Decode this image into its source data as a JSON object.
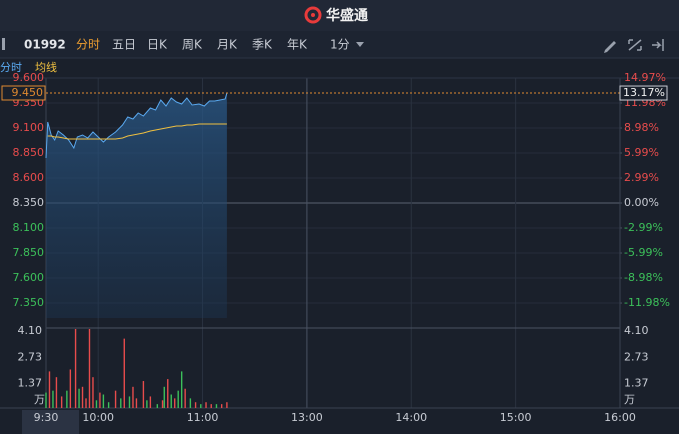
{
  "header": {
    "logo": "华盛通"
  },
  "toolbar": {
    "code": "01992",
    "tabs": [
      "分时",
      "五日",
      "日K",
      "周K",
      "月K",
      "季K",
      "年K"
    ],
    "active_tab": 0,
    "interval": "1分"
  },
  "chart_data": {
    "type": "line",
    "x": [
      0,
      1,
      3,
      5,
      7,
      10,
      13,
      16,
      18,
      21,
      24,
      27,
      30,
      33,
      36,
      40,
      44,
      47,
      50,
      53,
      56,
      60,
      63,
      66,
      69,
      72,
      75,
      78,
      81,
      84,
      88,
      91,
      94,
      97,
      100,
      103,
      104
    ],
    "series": [
      {
        "name": "分时",
        "color": "#5aa9f0",
        "values": [
          8.8,
          9.16,
          9.03,
          8.98,
          9.07,
          9.03,
          8.98,
          8.9,
          9.01,
          9.03,
          9.0,
          9.06,
          9.01,
          8.96,
          9.01,
          9.06,
          9.13,
          9.21,
          9.19,
          9.25,
          9.22,
          9.3,
          9.28,
          9.38,
          9.32,
          9.4,
          9.36,
          9.34,
          9.4,
          9.33,
          9.34,
          9.32,
          9.37,
          9.37,
          9.38,
          9.39,
          9.45
        ]
      },
      {
        "name": "均线",
        "color": "#f0c040",
        "values": [
          null,
          9.02,
          9.02,
          9.01,
          9.01,
          9.0,
          8.99,
          8.99,
          8.99,
          8.99,
          8.99,
          8.99,
          8.99,
          8.99,
          8.99,
          8.99,
          9.0,
          9.02,
          9.03,
          9.04,
          9.05,
          9.07,
          9.08,
          9.09,
          9.1,
          9.11,
          9.12,
          9.12,
          9.13,
          9.13,
          9.14,
          9.14,
          9.14,
          9.14,
          9.14,
          9.14,
          9.14
        ]
      }
    ],
    "xlim": [
      0,
      330
    ],
    "xticks": [
      {
        "value": 0,
        "label": "9:30"
      },
      {
        "value": 30,
        "label": "10:00"
      },
      {
        "value": 90,
        "label": "11:00"
      },
      {
        "value": 150,
        "label": "13:00"
      },
      {
        "value": 210,
        "label": "14:00"
      },
      {
        "value": 270,
        "label": "15:00"
      },
      {
        "value": 330,
        "label": "16:00"
      }
    ],
    "ylim": [
      7.1,
      9.6
    ],
    "yticks": [
      {
        "value": 9.6,
        "label": "9.600"
      },
      {
        "value": 9.35,
        "label": "9.350"
      },
      {
        "value": 9.1,
        "label": "9.100"
      },
      {
        "value": 8.85,
        "label": "8.850"
      },
      {
        "value": 8.6,
        "label": "8.600"
      },
      {
        "value": 8.35,
        "label": "8.350"
      },
      {
        "value": 8.1,
        "label": "8.100"
      },
      {
        "value": 7.85,
        "label": "7.850"
      },
      {
        "value": 7.6,
        "label": "7.600"
      },
      {
        "value": 7.35,
        "label": "7.350"
      }
    ],
    "y2lim": [
      -14.97,
      14.97
    ],
    "y2ticks": [
      {
        "value": 14.97,
        "label": "14.97%"
      },
      {
        "value": 11.98,
        "label": "11.98%"
      },
      {
        "value": 8.98,
        "label": "8.98%"
      },
      {
        "value": 5.99,
        "label": "5.99%"
      },
      {
        "value": 2.99,
        "label": "2.99%"
      },
      {
        "value": 0,
        "label": "0.00%"
      },
      {
        "value": -2.99,
        "label": "-2.99%"
      },
      {
        "value": -5.99,
        "label": "-5.99%"
      },
      {
        "value": -8.98,
        "label": "-8.98%"
      },
      {
        "value": -11.98,
        "label": "-11.98%"
      }
    ],
    "grid": true,
    "up_color": "#e84c4c",
    "down_color": "#3cc05a",
    "last_price": {
      "value": 9.45,
      "label": "9.450"
    },
    "last_change": {
      "value": 13.17,
      "label": "13.17%"
    },
    "volume": {
      "type": "bar",
      "x": [
        0,
        2,
        4,
        6,
        9,
        12,
        14,
        17,
        19,
        21,
        23,
        25,
        27,
        29,
        31,
        33,
        36,
        40,
        43,
        45,
        48,
        50,
        52,
        56,
        58,
        60,
        64,
        67,
        68,
        70,
        72,
        74,
        76,
        78,
        80,
        83,
        86,
        89,
        92,
        95,
        98,
        101,
        104
      ],
      "values": [
        0.8,
        1.9,
        0.9,
        1.6,
        0.6,
        0.9,
        2.0,
        4.1,
        1.0,
        1.1,
        0.5,
        4.1,
        1.6,
        0.4,
        0.8,
        0.7,
        0.3,
        0.9,
        0.5,
        3.6,
        0.6,
        1.1,
        0.5,
        1.4,
        0.4,
        0.6,
        0.2,
        0.4,
        1.1,
        1.5,
        0.7,
        0.5,
        0.9,
        1.9,
        1.0,
        0.5,
        0.3,
        0.2,
        0.3,
        0.2,
        0.2,
        0.2,
        0.3
      ],
      "colors": [
        "#3cc05a",
        "#e84c4c",
        "#3cc05a",
        "#e84c4c",
        "#e84c4c",
        "#3cc05a",
        "#e84c4c",
        "#e84c4c",
        "#3cc05a",
        "#e84c4c",
        "#e84c4c",
        "#e84c4c",
        "#e84c4c",
        "#3cc05a",
        "#e84c4c",
        "#3cc05a",
        "#3cc05a",
        "#e84c4c",
        "#3cc05a",
        "#e84c4c",
        "#3cc05a",
        "#e84c4c",
        "#e84c4c",
        "#e84c4c",
        "#3cc05a",
        "#e84c4c",
        "#3cc05a",
        "#e84c4c",
        "#3cc05a",
        "#e84c4c",
        "#3cc05a",
        "#e84c4c",
        "#3cc05a",
        "#3cc05a",
        "#e84c4c",
        "#3cc05a",
        "#e84c4c",
        "#3cc05a",
        "#e84c4c",
        "#e84c4c",
        "#3cc05a",
        "#e84c4c",
        "#e84c4c"
      ],
      "ylim": [
        0,
        4.1
      ],
      "yticks": [
        {
          "value": 4.1,
          "label": "4.10"
        },
        2.73,
        1.37
      ],
      "unit": "万"
    }
  }
}
